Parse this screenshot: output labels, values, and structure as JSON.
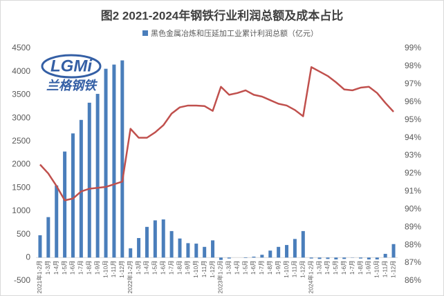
{
  "chart_data": {
    "type": "bar-line",
    "title": "图2 2021-2024年钢铁行业利润总额及成本占比",
    "watermark": {
      "logo": "LGMi",
      "brand": "兰格钢铁"
    },
    "categories": [
      "2021年1-2月",
      "1-3月",
      "1-4月",
      "1-5月",
      "1-6月",
      "1-7月",
      "1-8月",
      "1-9月",
      "1-10月",
      "1-11月",
      "1-12月",
      "2022年1-2月",
      "1-3月",
      "1-4月",
      "1-5月",
      "1-6月",
      "1-7月",
      "1-8月",
      "1-9月",
      "1-10月",
      "1-11月",
      "1-12月",
      "2023年1-2月",
      "1-3月",
      "1-4月",
      "1-5月",
      "1-6月",
      "1-7月",
      "1-8月",
      "1-9月",
      "1-10月",
      "1-11月",
      "1-12月",
      "2024年1-2月",
      "1-3月",
      "1-4月",
      "1-5月",
      "1-6月",
      "1-7月",
      "1-8月",
      "1-9月",
      "1-10月",
      "1-11月",
      "1-12月"
    ],
    "series": [
      {
        "name": "黑色金属冶炼和压延加工业累计利润总额（亿元）",
        "type": "bar",
        "color": "#4a7ebb",
        "values": [
          480,
          870,
          1550,
          2280,
          2670,
          2960,
          3330,
          3520,
          4060,
          4150,
          4240,
          200,
          420,
          660,
          800,
          820,
          570,
          410,
          310,
          300,
          230,
          370,
          -50,
          -20,
          0,
          -10,
          20,
          60,
          150,
          230,
          270,
          400,
          570,
          -20,
          -30,
          -30,
          -40,
          -30,
          -5,
          -20,
          -40,
          -40,
          80,
          290
        ]
      },
      {
        "type": "line",
        "axis": "y2",
        "color": "#c0504d",
        "values": [
          92.5,
          92.0,
          91.3,
          90.5,
          90.6,
          91.0,
          91.15,
          91.2,
          91.25,
          91.4,
          91.55,
          94.5,
          94.0,
          94.0,
          94.3,
          94.7,
          95.35,
          95.7,
          95.8,
          95.8,
          95.77,
          95.5,
          96.85,
          96.4,
          96.5,
          96.65,
          96.4,
          96.3,
          96.1,
          95.9,
          95.8,
          95.55,
          95.2,
          97.95,
          97.7,
          97.45,
          97.1,
          96.7,
          96.65,
          96.8,
          96.85,
          96.5,
          95.95,
          95.45
        ]
      }
    ],
    "ylim": [
      -500,
      4500
    ],
    "yticks": [
      -500,
      0,
      500,
      1000,
      1500,
      2000,
      2500,
      3000,
      3500,
      4000,
      4500
    ],
    "y2lim": [
      86,
      99
    ],
    "y2ticks": [
      {
        "value": 86,
        "label": "86%"
      },
      {
        "value": 87,
        "label": "87%"
      },
      {
        "value": 88,
        "label": "88%"
      },
      {
        "value": 89,
        "label": "89%"
      },
      {
        "value": 90,
        "label": "90%"
      },
      {
        "value": 91,
        "label": "91%"
      },
      {
        "value": 92,
        "label": "92%"
      },
      {
        "value": 93,
        "label": "93%"
      },
      {
        "value": 94,
        "label": "94%"
      },
      {
        "value": 95,
        "label": "95%"
      },
      {
        "value": 96,
        "label": "96%"
      },
      {
        "value": 97,
        "label": "97%"
      },
      {
        "value": 98,
        "label": "98%"
      },
      {
        "value": 99,
        "label": "99%"
      }
    ]
  }
}
